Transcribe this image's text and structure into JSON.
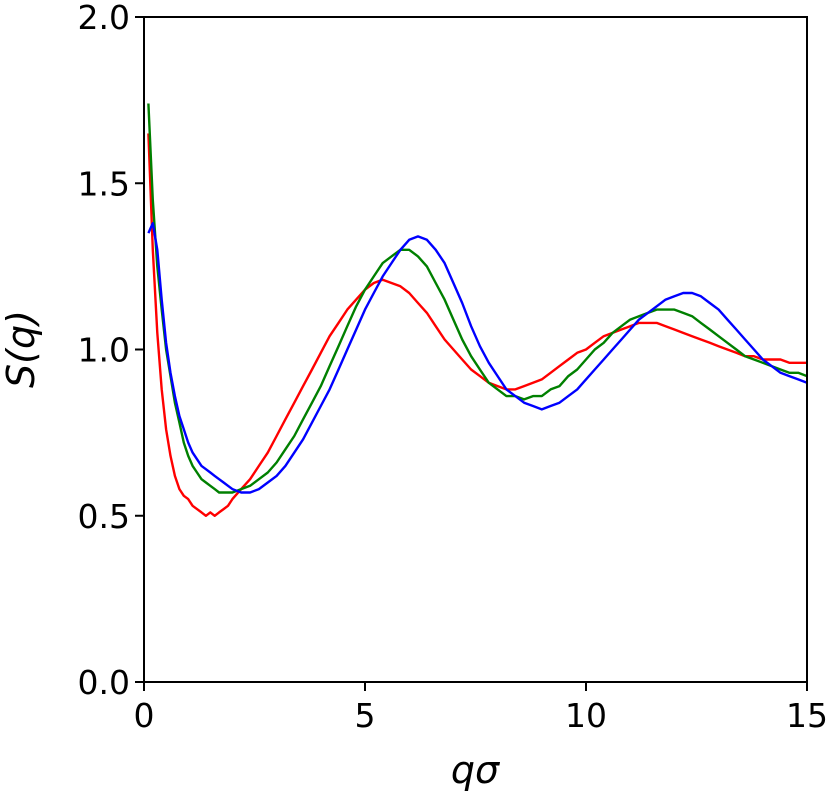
{
  "chart_data": {
    "type": "line",
    "xlabel": "qσ",
    "ylabel": "S(q)",
    "xlim": [
      0,
      15
    ],
    "ylim": [
      0,
      2
    ],
    "xticks": [
      0,
      5,
      10,
      15
    ],
    "xtick_labels": [
      "0",
      "5",
      "10",
      "15"
    ],
    "yticks": [
      0,
      0.5,
      1,
      1.5,
      2
    ],
    "ytick_labels": [
      "0.0",
      "0.5",
      "1.0",
      "1.5",
      "2.0"
    ],
    "grid": false,
    "legend": "none",
    "series": [
      {
        "color": "#ff0000",
        "x": [
          0.1,
          0.2,
          0.3,
          0.4,
          0.5,
          0.6,
          0.7,
          0.8,
          0.9,
          1.0,
          1.1,
          1.2,
          1.3,
          1.4,
          1.5,
          1.6,
          1.7,
          1.8,
          1.9,
          2.0,
          2.2,
          2.4,
          2.6,
          2.8,
          3.0,
          3.2,
          3.4,
          3.6,
          3.8,
          4.0,
          4.2,
          4.4,
          4.6,
          4.8,
          5.0,
          5.2,
          5.4,
          5.6,
          5.8,
          6.0,
          6.2,
          6.4,
          6.6,
          6.8,
          7.0,
          7.2,
          7.4,
          7.6,
          7.8,
          8.0,
          8.2,
          8.4,
          8.6,
          8.8,
          9.0,
          9.2,
          9.4,
          9.6,
          9.8,
          10.0,
          10.2,
          10.4,
          10.6,
          10.8,
          11.0,
          11.2,
          11.4,
          11.6,
          11.8,
          12.0,
          12.2,
          12.4,
          12.6,
          12.8,
          13.0,
          13.2,
          13.4,
          13.6,
          13.8,
          14.0,
          14.2,
          14.4,
          14.6,
          14.8,
          15.0
        ],
        "y": [
          1.65,
          1.3,
          1.05,
          0.88,
          0.76,
          0.68,
          0.62,
          0.58,
          0.56,
          0.55,
          0.53,
          0.52,
          0.51,
          0.5,
          0.51,
          0.5,
          0.51,
          0.52,
          0.53,
          0.55,
          0.58,
          0.61,
          0.65,
          0.69,
          0.74,
          0.79,
          0.84,
          0.89,
          0.94,
          0.99,
          1.04,
          1.08,
          1.12,
          1.15,
          1.18,
          1.2,
          1.21,
          1.2,
          1.19,
          1.17,
          1.14,
          1.11,
          1.07,
          1.03,
          1.0,
          0.97,
          0.94,
          0.92,
          0.9,
          0.89,
          0.88,
          0.88,
          0.89,
          0.9,
          0.91,
          0.93,
          0.95,
          0.97,
          0.99,
          1.0,
          1.02,
          1.04,
          1.05,
          1.06,
          1.07,
          1.08,
          1.08,
          1.08,
          1.07,
          1.06,
          1.05,
          1.04,
          1.03,
          1.02,
          1.01,
          1.0,
          0.99,
          0.98,
          0.98,
          0.97,
          0.97,
          0.97,
          0.96,
          0.96,
          0.96
        ]
      },
      {
        "color": "#008000",
        "x": [
          0.1,
          0.2,
          0.3,
          0.4,
          0.5,
          0.6,
          0.7,
          0.8,
          0.9,
          1.0,
          1.1,
          1.2,
          1.3,
          1.4,
          1.5,
          1.6,
          1.7,
          1.8,
          1.9,
          2.0,
          2.2,
          2.4,
          2.6,
          2.8,
          3.0,
          3.2,
          3.4,
          3.6,
          3.8,
          4.0,
          4.2,
          4.4,
          4.6,
          4.8,
          5.0,
          5.2,
          5.4,
          5.6,
          5.8,
          6.0,
          6.2,
          6.4,
          6.6,
          6.8,
          7.0,
          7.2,
          7.4,
          7.6,
          7.8,
          8.0,
          8.2,
          8.4,
          8.6,
          8.8,
          9.0,
          9.2,
          9.4,
          9.6,
          9.8,
          10.0,
          10.2,
          10.4,
          10.6,
          10.8,
          11.0,
          11.2,
          11.4,
          11.6,
          11.8,
          12.0,
          12.2,
          12.4,
          12.6,
          12.8,
          13.0,
          13.2,
          13.4,
          13.6,
          13.8,
          14.0,
          14.2,
          14.4,
          14.6,
          14.8,
          15.0
        ],
        "y": [
          1.74,
          1.45,
          1.25,
          1.12,
          1.0,
          0.92,
          0.84,
          0.78,
          0.72,
          0.68,
          0.65,
          0.63,
          0.61,
          0.6,
          0.59,
          0.58,
          0.57,
          0.57,
          0.57,
          0.57,
          0.58,
          0.59,
          0.61,
          0.63,
          0.66,
          0.7,
          0.74,
          0.79,
          0.84,
          0.89,
          0.95,
          1.01,
          1.07,
          1.13,
          1.18,
          1.22,
          1.26,
          1.28,
          1.3,
          1.3,
          1.28,
          1.25,
          1.2,
          1.15,
          1.09,
          1.03,
          0.98,
          0.94,
          0.9,
          0.88,
          0.86,
          0.86,
          0.85,
          0.86,
          0.86,
          0.88,
          0.89,
          0.92,
          0.94,
          0.97,
          1.0,
          1.02,
          1.05,
          1.07,
          1.09,
          1.1,
          1.11,
          1.12,
          1.12,
          1.12,
          1.11,
          1.1,
          1.08,
          1.06,
          1.04,
          1.02,
          1.0,
          0.98,
          0.97,
          0.96,
          0.95,
          0.94,
          0.93,
          0.93,
          0.92
        ]
      },
      {
        "color": "#0000ff",
        "x": [
          0.1,
          0.2,
          0.3,
          0.4,
          0.5,
          0.6,
          0.7,
          0.8,
          0.9,
          1.0,
          1.1,
          1.2,
          1.3,
          1.4,
          1.5,
          1.6,
          1.7,
          1.8,
          1.9,
          2.0,
          2.2,
          2.4,
          2.6,
          2.8,
          3.0,
          3.2,
          3.4,
          3.6,
          3.8,
          4.0,
          4.2,
          4.4,
          4.6,
          4.8,
          5.0,
          5.2,
          5.4,
          5.6,
          5.8,
          6.0,
          6.2,
          6.4,
          6.6,
          6.8,
          7.0,
          7.2,
          7.4,
          7.6,
          7.8,
          8.0,
          8.2,
          8.4,
          8.6,
          8.8,
          9.0,
          9.2,
          9.4,
          9.6,
          9.8,
          10.0,
          10.2,
          10.4,
          10.6,
          10.8,
          11.0,
          11.2,
          11.4,
          11.6,
          11.8,
          12.0,
          12.2,
          12.4,
          12.6,
          12.8,
          13.0,
          13.2,
          13.4,
          13.6,
          13.8,
          14.0,
          14.2,
          14.4,
          14.6,
          14.8,
          15.0
        ],
        "y": [
          1.35,
          1.38,
          1.3,
          1.15,
          1.02,
          0.93,
          0.86,
          0.8,
          0.76,
          0.72,
          0.69,
          0.67,
          0.65,
          0.64,
          0.63,
          0.62,
          0.61,
          0.6,
          0.59,
          0.58,
          0.57,
          0.57,
          0.58,
          0.6,
          0.62,
          0.65,
          0.69,
          0.73,
          0.78,
          0.83,
          0.88,
          0.94,
          1.0,
          1.06,
          1.12,
          1.17,
          1.22,
          1.26,
          1.3,
          1.33,
          1.34,
          1.33,
          1.3,
          1.26,
          1.2,
          1.14,
          1.07,
          1.01,
          0.96,
          0.92,
          0.88,
          0.86,
          0.84,
          0.83,
          0.82,
          0.83,
          0.84,
          0.86,
          0.88,
          0.91,
          0.94,
          0.97,
          1.0,
          1.03,
          1.06,
          1.09,
          1.11,
          1.13,
          1.15,
          1.16,
          1.17,
          1.17,
          1.16,
          1.14,
          1.12,
          1.09,
          1.06,
          1.03,
          1.0,
          0.97,
          0.95,
          0.93,
          0.92,
          0.91,
          0.9
        ]
      }
    ]
  }
}
